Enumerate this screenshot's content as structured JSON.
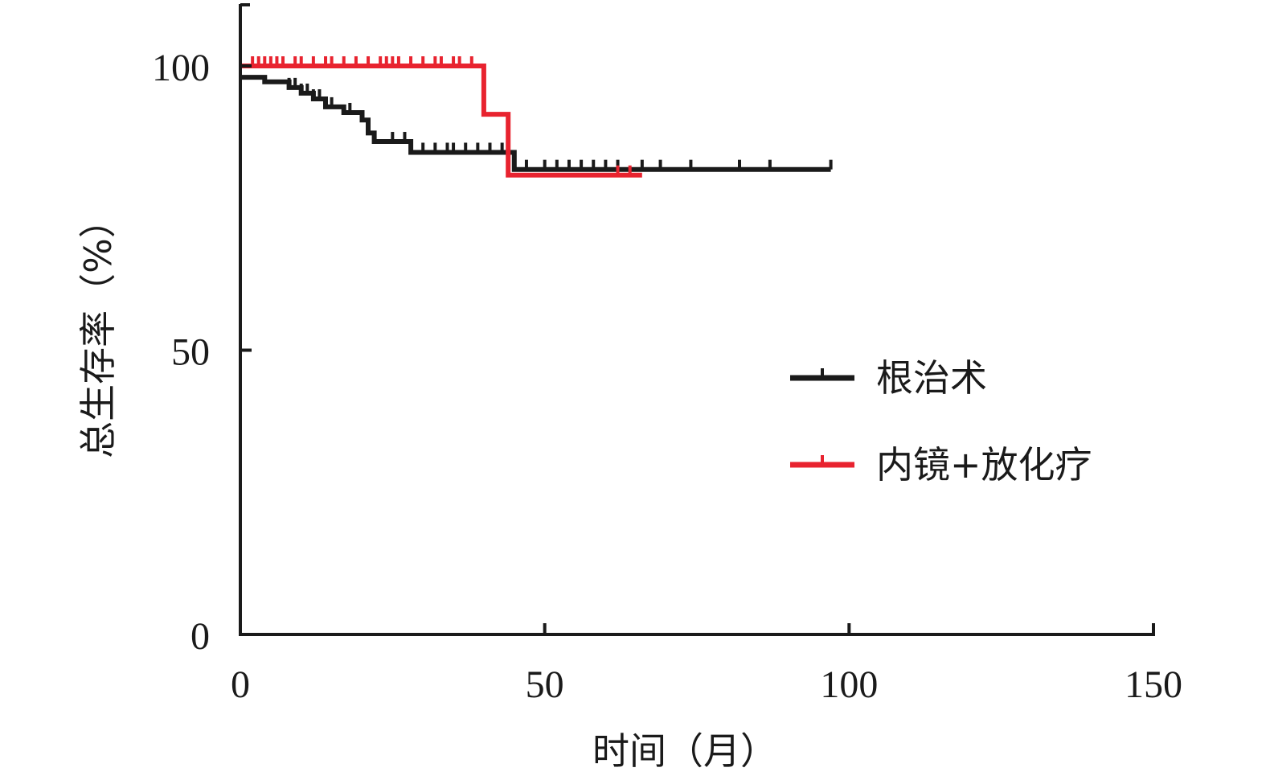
{
  "chart_data": {
    "type": "line",
    "subtype": "kaplan-meier",
    "title": "",
    "xlabel": "时间（月）",
    "ylabel": "总生存率（%）",
    "xlim": [
      0,
      150
    ],
    "ylim": [
      0,
      100
    ],
    "xticks": [
      0,
      50,
      100,
      150
    ],
    "yticks": [
      0,
      50,
      100
    ],
    "grid": false,
    "legend_position": "right-middle",
    "series": [
      {
        "name": "根治术",
        "color": "#1a1a1a",
        "steps": [
          [
            0,
            98
          ],
          [
            4,
            98
          ],
          [
            4,
            97.2
          ],
          [
            8,
            97.2
          ],
          [
            8,
            96.2
          ],
          [
            10,
            96.2
          ],
          [
            10,
            95.2
          ],
          [
            12,
            95.2
          ],
          [
            12,
            94.2
          ],
          [
            14,
            94.2
          ],
          [
            14,
            92.8
          ],
          [
            17,
            92.8
          ],
          [
            17,
            91.8
          ],
          [
            20,
            91.8
          ],
          [
            20,
            90.5
          ],
          [
            21,
            90.5
          ],
          [
            21,
            88.2
          ],
          [
            22,
            88.2
          ],
          [
            22,
            86.7
          ],
          [
            28,
            86.7
          ],
          [
            28,
            84.8
          ],
          [
            45,
            84.8
          ],
          [
            45,
            81.8
          ],
          [
            97,
            81.8
          ]
        ],
        "censor": [
          8,
          9,
          10,
          11,
          12,
          13,
          14,
          15,
          18,
          20,
          22,
          25,
          27,
          30,
          32,
          34,
          35,
          37,
          39,
          41,
          43,
          45,
          47,
          50,
          52,
          54,
          56,
          58,
          60,
          62,
          66,
          69,
          74,
          82,
          87,
          97
        ]
      },
      {
        "name": "内镜+放化疗",
        "color": "#e8232f",
        "steps": [
          [
            0,
            100
          ],
          [
            40,
            100
          ],
          [
            40,
            91.5
          ],
          [
            44,
            91.5
          ],
          [
            44,
            80.8
          ],
          [
            66,
            80.8
          ]
        ],
        "censor": [
          2,
          3,
          4,
          5,
          6,
          7,
          9,
          10,
          12,
          14,
          15,
          17,
          19,
          21,
          23,
          24,
          25,
          26,
          28,
          30,
          32,
          33,
          35,
          36,
          38,
          40,
          62,
          64
        ]
      }
    ]
  }
}
